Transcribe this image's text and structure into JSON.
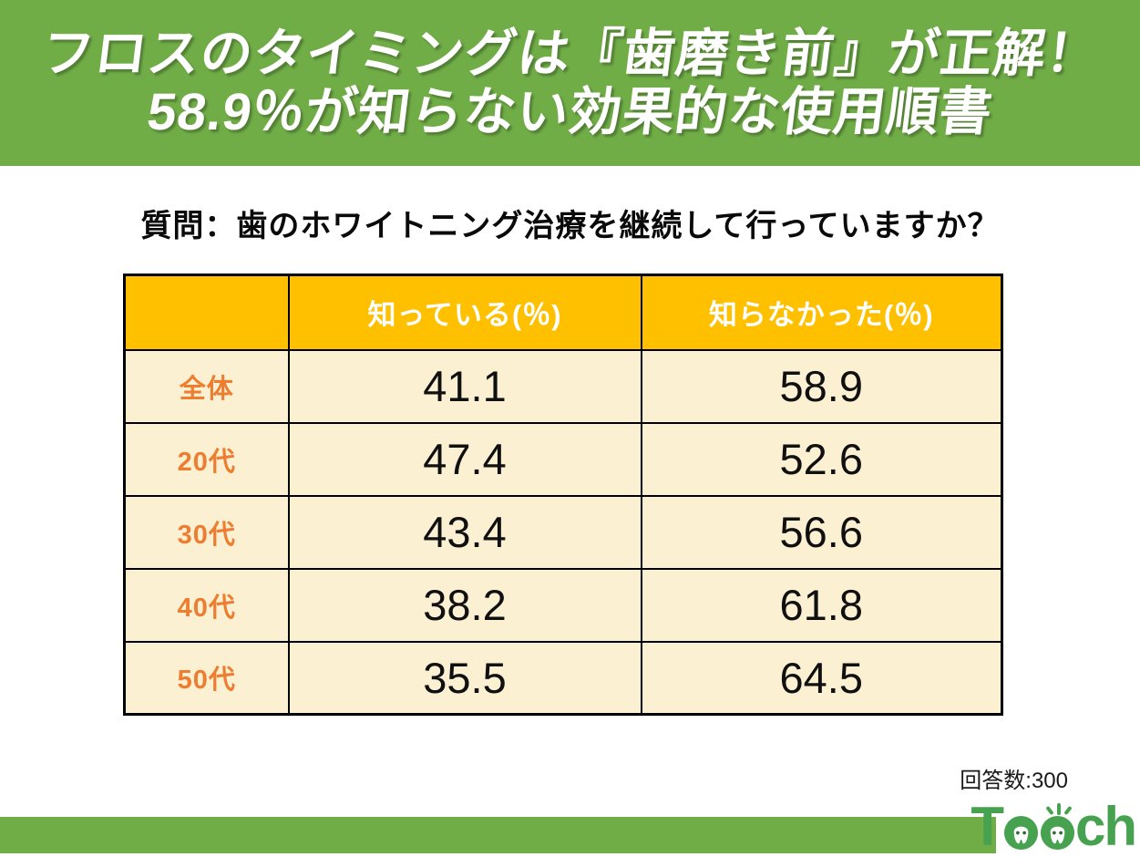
{
  "banner": {
    "title_line1": "フロスのタイミングは『歯磨き前』が正解！",
    "title_line2": "58.9％が知らない効果的な使用順書"
  },
  "question": "質問：歯のホワイトニング治療を継続して行っていますか？",
  "table": {
    "columns": [
      "",
      "知っている(％)",
      "知らなかった(％)"
    ],
    "rows": [
      {
        "label": "全体",
        "know": "41.1",
        "not_know": "58.9"
      },
      {
        "label": "20代",
        "know": "47.4",
        "not_know": "52.6"
      },
      {
        "label": "30代",
        "know": "43.4",
        "not_know": "56.6"
      },
      {
        "label": "40代",
        "know": "38.2",
        "not_know": "61.8"
      },
      {
        "label": "50代",
        "know": "35.5",
        "not_know": "64.5"
      }
    ]
  },
  "respondents_label": "回答数:300",
  "logo_text": "Teech",
  "colors": {
    "banner_green": "#70AD47",
    "footer_green": "#70AD47",
    "header_orange": "#FFC000",
    "cell_cream": "#FCF0D3",
    "label_orange": "#ED7D31",
    "logo_green": "#46A24E",
    "title_text": "#FFFFFF",
    "border": "#000000"
  },
  "chart_data": {
    "type": "table",
    "title": "フロスのタイミングは『歯磨き前』が正解！ 58.9％が知らない効果的な使用順書",
    "question": "質問：歯のホワイトニング治療を継続して行っていますか？",
    "categories": [
      "全体",
      "20代",
      "30代",
      "40代",
      "50代"
    ],
    "series": [
      {
        "name": "知っている(％)",
        "values": [
          41.1,
          47.4,
          43.4,
          38.2,
          35.5
        ]
      },
      {
        "name": "知らなかった(％)",
        "values": [
          58.9,
          52.6,
          56.6,
          61.8,
          64.5
        ]
      }
    ],
    "footnote": "回答数:300",
    "layout": {
      "legend_position": "table-header",
      "grid": true
    }
  }
}
